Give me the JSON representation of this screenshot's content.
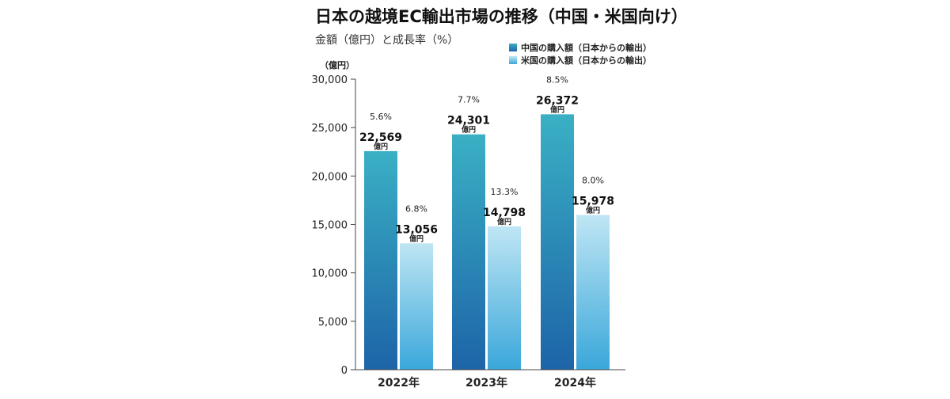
{
  "chart_data": {
    "type": "bar",
    "title": "日本の越境EC輸出市場の推移（中国・米国向け）",
    "subtitle": "金額（億円）と成長率（%）",
    "ylabel": "（億円）",
    "xlabel": "",
    "ylim": [
      0,
      30000
    ],
    "yticks": [
      0,
      5000,
      10000,
      15000,
      20000,
      25000,
      30000
    ],
    "ytick_labels": [
      "0",
      "5,000",
      "10,000",
      "15,000",
      "20,000",
      "25,000",
      "30,000"
    ],
    "categories": [
      "2022年",
      "2023年",
      "2024年"
    ],
    "value_unit": "億円",
    "legend_position": "top-right",
    "grid": false,
    "series": [
      {
        "name": "中国の購入額（日本からの輸出）",
        "color": "#2f86b5",
        "values": [
          22569,
          24301,
          26372
        ],
        "value_labels": [
          "22,569",
          "24,301",
          "26,372"
        ],
        "growth_labels": [
          "5.6%",
          "7.7%",
          "8.5%"
        ]
      },
      {
        "name": "米国の購入額（日本からの輸出）",
        "color": "#8fd0ea",
        "values": [
          13056,
          14798,
          15978
        ],
        "value_labels": [
          "13,056",
          "14,798",
          "15,978"
        ],
        "growth_labels": [
          "6.8%",
          "13.3%",
          "8.0%"
        ]
      }
    ]
  }
}
